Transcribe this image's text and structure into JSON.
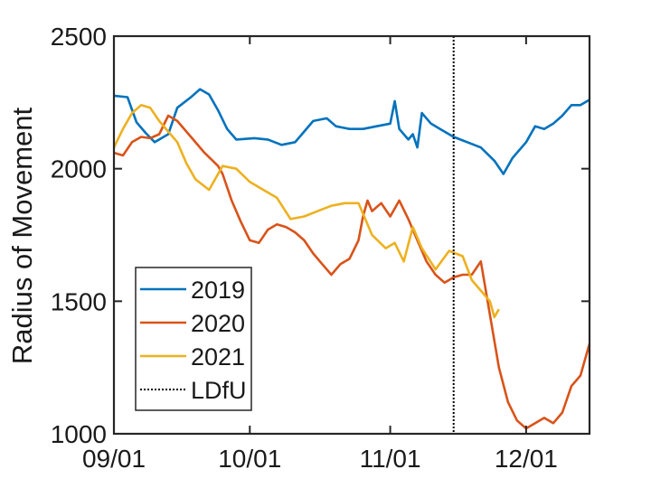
{
  "chart_data": {
    "type": "line",
    "title": "",
    "xlabel": "",
    "ylabel": "Radius of Movement",
    "x_axis": {
      "type": "date",
      "range": [
        "2021-09-01",
        "2021-12-15"
      ],
      "ticks": [
        {
          "date": "2021-09-01",
          "label": "09/01"
        },
        {
          "date": "2021-10-01",
          "label": "10/01"
        },
        {
          "date": "2021-11-01",
          "label": "11/01"
        },
        {
          "date": "2021-12-01",
          "label": "12/01"
        }
      ]
    },
    "y_axis": {
      "range": [
        1000,
        2500
      ],
      "ticks": [
        1000,
        1500,
        2000,
        2500
      ]
    },
    "grid": false,
    "legend_position": "bottom-left",
    "series": [
      {
        "name": "2019",
        "color": "#0072BD",
        "points": [
          [
            "2021-09-01",
            2275
          ],
          [
            "2021-09-04",
            2270
          ],
          [
            "2021-09-06",
            2175
          ],
          [
            "2021-09-08",
            2135
          ],
          [
            "2021-09-10",
            2100
          ],
          [
            "2021-09-13",
            2130
          ],
          [
            "2021-09-15",
            2230
          ],
          [
            "2021-09-18",
            2270
          ],
          [
            "2021-09-20",
            2300
          ],
          [
            "2021-09-22",
            2280
          ],
          [
            "2021-09-24",
            2220
          ],
          [
            "2021-09-26",
            2150
          ],
          [
            "2021-09-28",
            2110
          ],
          [
            "2021-10-02",
            2115
          ],
          [
            "2021-10-05",
            2110
          ],
          [
            "2021-10-08",
            2090
          ],
          [
            "2021-10-11",
            2100
          ],
          [
            "2021-10-13",
            2140
          ],
          [
            "2021-10-15",
            2180
          ],
          [
            "2021-10-18",
            2190
          ],
          [
            "2021-10-20",
            2160
          ],
          [
            "2021-10-23",
            2150
          ],
          [
            "2021-10-26",
            2150
          ],
          [
            "2021-10-29",
            2160
          ],
          [
            "2021-11-01",
            2170
          ],
          [
            "2021-11-02",
            2255
          ],
          [
            "2021-11-03",
            2150
          ],
          [
            "2021-11-05",
            2110
          ],
          [
            "2021-11-06",
            2130
          ],
          [
            "2021-11-07",
            2080
          ],
          [
            "2021-11-08",
            2210
          ],
          [
            "2021-11-10",
            2170
          ],
          [
            "2021-11-12",
            2150
          ],
          [
            "2021-11-15",
            2120
          ],
          [
            "2021-11-18",
            2100
          ],
          [
            "2021-11-21",
            2080
          ],
          [
            "2021-11-24",
            2030
          ],
          [
            "2021-11-26",
            1980
          ],
          [
            "2021-11-28",
            2040
          ],
          [
            "2021-12-01",
            2100
          ],
          [
            "2021-12-03",
            2160
          ],
          [
            "2021-12-05",
            2150
          ],
          [
            "2021-12-07",
            2170
          ],
          [
            "2021-12-09",
            2200
          ],
          [
            "2021-12-11",
            2240
          ],
          [
            "2021-12-13",
            2240
          ],
          [
            "2021-12-15",
            2260
          ]
        ]
      },
      {
        "name": "2020",
        "color": "#D95319",
        "points": [
          [
            "2021-09-01",
            2060
          ],
          [
            "2021-09-03",
            2050
          ],
          [
            "2021-09-05",
            2100
          ],
          [
            "2021-09-07",
            2120
          ],
          [
            "2021-09-09",
            2115
          ],
          [
            "2021-09-11",
            2130
          ],
          [
            "2021-09-13",
            2200
          ],
          [
            "2021-09-15",
            2180
          ],
          [
            "2021-09-18",
            2120
          ],
          [
            "2021-09-21",
            2060
          ],
          [
            "2021-09-24",
            2010
          ],
          [
            "2021-09-25",
            1980
          ],
          [
            "2021-09-27",
            1880
          ],
          [
            "2021-09-29",
            1800
          ],
          [
            "2021-10-01",
            1730
          ],
          [
            "2021-10-03",
            1720
          ],
          [
            "2021-10-05",
            1770
          ],
          [
            "2021-10-07",
            1790
          ],
          [
            "2021-10-09",
            1780
          ],
          [
            "2021-10-11",
            1760
          ],
          [
            "2021-10-13",
            1730
          ],
          [
            "2021-10-15",
            1680
          ],
          [
            "2021-10-17",
            1640
          ],
          [
            "2021-10-19",
            1600
          ],
          [
            "2021-10-21",
            1640
          ],
          [
            "2021-10-23",
            1660
          ],
          [
            "2021-10-25",
            1730
          ],
          [
            "2021-10-26",
            1820
          ],
          [
            "2021-10-27",
            1880
          ],
          [
            "2021-10-28",
            1840
          ],
          [
            "2021-10-30",
            1870
          ],
          [
            "2021-11-01",
            1820
          ],
          [
            "2021-11-03",
            1880
          ],
          [
            "2021-11-05",
            1810
          ],
          [
            "2021-11-07",
            1730
          ],
          [
            "2021-11-09",
            1650
          ],
          [
            "2021-11-11",
            1600
          ],
          [
            "2021-11-13",
            1570
          ],
          [
            "2021-11-15",
            1590
          ],
          [
            "2021-11-17",
            1600
          ],
          [
            "2021-11-19",
            1600
          ],
          [
            "2021-11-21",
            1650
          ],
          [
            "2021-11-23",
            1450
          ],
          [
            "2021-11-25",
            1250
          ],
          [
            "2021-11-27",
            1120
          ],
          [
            "2021-11-29",
            1050
          ],
          [
            "2021-12-01",
            1020
          ],
          [
            "2021-12-03",
            1040
          ],
          [
            "2021-12-05",
            1060
          ],
          [
            "2021-12-07",
            1040
          ],
          [
            "2021-12-09",
            1080
          ],
          [
            "2021-12-11",
            1180
          ],
          [
            "2021-12-13",
            1220
          ],
          [
            "2021-12-15",
            1340
          ]
        ]
      },
      {
        "name": "2021",
        "color": "#EDB120",
        "points": [
          [
            "2021-09-01",
            2080
          ],
          [
            "2021-09-03",
            2150
          ],
          [
            "2021-09-05",
            2210
          ],
          [
            "2021-09-07",
            2240
          ],
          [
            "2021-09-09",
            2230
          ],
          [
            "2021-09-11",
            2180
          ],
          [
            "2021-09-13",
            2140
          ],
          [
            "2021-09-15",
            2100
          ],
          [
            "2021-09-17",
            2020
          ],
          [
            "2021-09-19",
            1960
          ],
          [
            "2021-09-22",
            1920
          ],
          [
            "2021-09-25",
            2010
          ],
          [
            "2021-09-28",
            2000
          ],
          [
            "2021-10-01",
            1950
          ],
          [
            "2021-10-04",
            1920
          ],
          [
            "2021-10-07",
            1890
          ],
          [
            "2021-10-10",
            1810
          ],
          [
            "2021-10-13",
            1820
          ],
          [
            "2021-10-16",
            1840
          ],
          [
            "2021-10-19",
            1860
          ],
          [
            "2021-10-22",
            1870
          ],
          [
            "2021-10-25",
            1870
          ],
          [
            "2021-10-28",
            1750
          ],
          [
            "2021-10-31",
            1700
          ],
          [
            "2021-11-02",
            1720
          ],
          [
            "2021-11-04",
            1650
          ],
          [
            "2021-11-06",
            1780
          ],
          [
            "2021-11-08",
            1700
          ],
          [
            "2021-11-11",
            1620
          ],
          [
            "2021-11-14",
            1690
          ],
          [
            "2021-11-17",
            1670
          ],
          [
            "2021-11-19",
            1580
          ],
          [
            "2021-11-21",
            1540
          ],
          [
            "2021-11-23",
            1500
          ],
          [
            "2021-11-24",
            1440
          ],
          [
            "2021-11-25",
            1470
          ]
        ]
      }
    ],
    "reference_lines": [
      {
        "name": "LDfU",
        "orientation": "vertical",
        "date": "2021-11-15",
        "style": "dotted",
        "color": "#000000"
      }
    ]
  }
}
